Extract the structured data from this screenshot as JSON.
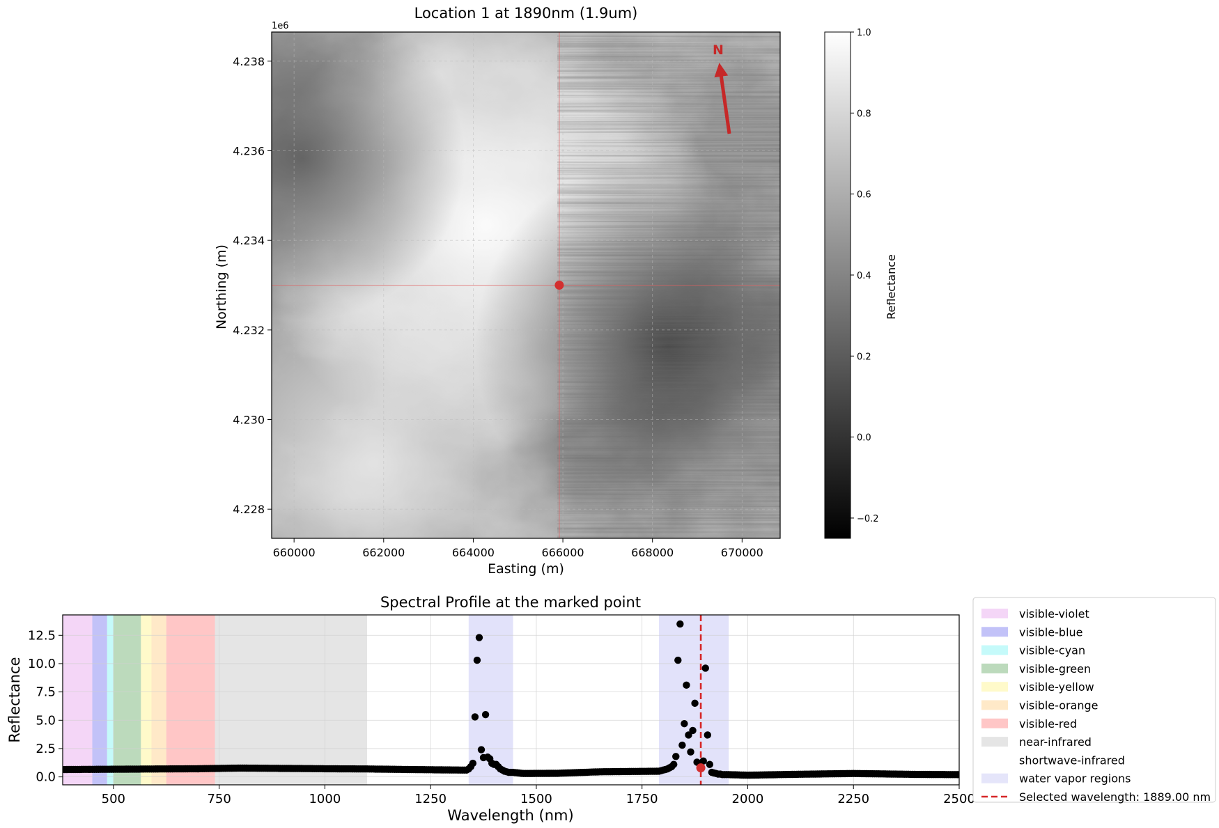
{
  "chart_data": [
    {
      "type": "heatmap",
      "title": "Location 1 at 1890nm (1.9um)",
      "xlabel": "Easting (m)",
      "ylabel": "Northing (m)",
      "xlim": [
        659500,
        670850
      ],
      "ylim": [
        4227350,
        4238650
      ],
      "y_offset_label": "1e6",
      "xticks": [
        660000,
        662000,
        664000,
        666000,
        668000,
        670000
      ],
      "xtick_labels": [
        "660000",
        "662000",
        "664000",
        "666000",
        "668000",
        "670000"
      ],
      "yticks": [
        4228000,
        4230000,
        4232000,
        4234000,
        4236000,
        4238000
      ],
      "ytick_labels": [
        "4.228",
        "4.230",
        "4.232",
        "4.234",
        "4.236",
        "4.238"
      ],
      "grid": true,
      "marked_point": {
        "x": 665920,
        "y": 4233000
      },
      "north_arrow": {
        "label": "N",
        "color": "#c62828"
      },
      "colorbar": {
        "label": "Reflectance",
        "min": -0.25,
        "max": 1.0,
        "ticks": [
          -0.2,
          0.0,
          0.2,
          0.4,
          0.6,
          0.8,
          1.0
        ],
        "tick_labels": [
          "−0.2",
          "0.0",
          "0.2",
          "0.4",
          "0.6",
          "0.8",
          "1.0"
        ],
        "colormap": "gray"
      }
    },
    {
      "type": "scatter",
      "title": "Spectral Profile at the marked point",
      "xlabel": "Wavelength (nm)",
      "ylabel": "Reflectance",
      "xlim": [
        380,
        2500
      ],
      "ylim": [
        -0.7,
        14.3
      ],
      "xticks": [
        500,
        750,
        1000,
        1250,
        1500,
        1750,
        2000,
        2250,
        2500
      ],
      "xtick_labels": [
        "500",
        "750",
        "1000",
        "1250",
        "1500",
        "1750",
        "2000",
        "2250",
        "2500"
      ],
      "yticks": [
        0.0,
        2.5,
        5.0,
        7.5,
        10.0,
        12.5
      ],
      "ytick_labels": [
        "0.0",
        "2.5",
        "5.0",
        "7.5",
        "10.0",
        "12.5"
      ],
      "grid": true,
      "legend_position": "outside right",
      "regions": [
        {
          "name": "visible-violet",
          "start": 380,
          "end": 450,
          "color": "#e6a3ee"
        },
        {
          "name": "visible-blue",
          "start": 450,
          "end": 485,
          "color": "#7777f0"
        },
        {
          "name": "visible-cyan",
          "start": 485,
          "end": 500,
          "color": "#7ff5f5"
        },
        {
          "name": "visible-green",
          "start": 500,
          "end": 565,
          "color": "#6aad6a"
        },
        {
          "name": "visible-yellow",
          "start": 565,
          "end": 590,
          "color": "#fff58a"
        },
        {
          "name": "visible-orange",
          "start": 590,
          "end": 625,
          "color": "#ffcf85"
        },
        {
          "name": "visible-red",
          "start": 625,
          "end": 740,
          "color": "#ff8080"
        },
        {
          "name": "near-infrared",
          "start": 740,
          "end": 1100,
          "color": "#c6c6c6"
        },
        {
          "name": "shortwave-infrared",
          "start": 1100,
          "end": 2500,
          "color": "#ffffff"
        },
        {
          "name": "water vapor regions",
          "ranges": [
            [
              1340,
              1445
            ],
            [
              1790,
              1955
            ]
          ],
          "color": "#c5c5f5"
        }
      ],
      "selected_wavelength": {
        "value": 1889.0,
        "label": "Selected wavelength: 1889.00 nm",
        "color": "#d62728"
      },
      "series": [
        {
          "segments": [
            {
              "start": 380,
              "end": 700,
              "step": 5,
              "values_at": [
                [
                  380,
                  0.65
                ],
                [
                  700,
                  0.72
                ]
              ]
            },
            {
              "start": 700,
              "end": 1330,
              "step": 5,
              "values_at": [
                [
                  700,
                  0.72
                ],
                [
                  800,
                  0.78
                ],
                [
                  900,
                  0.75
                ],
                [
                  1000,
                  0.72
                ],
                [
                  1100,
                  0.7
                ],
                [
                  1200,
                  0.65
                ],
                [
                  1330,
                  0.6
                ]
              ]
            },
            {
              "start": 1445,
              "end": 1790,
              "step": 5,
              "values_at": [
                [
                  1445,
                  0.4
                ],
                [
                  1470,
                  0.3
                ],
                [
                  1550,
                  0.32
                ],
                [
                  1650,
                  0.45
                ],
                [
                  1790,
                  0.5
                ]
              ]
            },
            {
              "start": 1955,
              "end": 2500,
              "step": 5,
              "values_at": [
                [
                  1955,
                  0.2
                ],
                [
                  2000,
                  0.15
                ],
                [
                  2100,
                  0.22
                ],
                [
                  2250,
                  0.3
                ],
                [
                  2400,
                  0.22
                ],
                [
                  2500,
                  0.2
                ]
              ]
            }
          ],
          "points": [
            [
              1335,
              0.6
            ],
            [
              1340,
              0.7
            ],
            [
              1345,
              0.9
            ],
            [
              1350,
              1.2
            ],
            [
              1355,
              5.3
            ],
            [
              1360,
              10.3
            ],
            [
              1365,
              12.3
            ],
            [
              1370,
              2.4
            ],
            [
              1375,
              1.7
            ],
            [
              1380,
              5.5
            ],
            [
              1385,
              1.75
            ],
            [
              1390,
              1.6
            ],
            [
              1395,
              1.2
            ],
            [
              1400,
              1.1
            ],
            [
              1405,
              1.1
            ],
            [
              1410,
              0.9
            ],
            [
              1415,
              0.7
            ],
            [
              1420,
              0.6
            ],
            [
              1425,
              0.5
            ],
            [
              1430,
              0.45
            ],
            [
              1435,
              0.4
            ],
            [
              1440,
              0.4
            ],
            [
              1795,
              0.55
            ],
            [
              1800,
              0.6
            ],
            [
              1805,
              0.65
            ],
            [
              1810,
              0.7
            ],
            [
              1815,
              0.8
            ],
            [
              1820,
              0.9
            ],
            [
              1825,
              1.1
            ],
            [
              1830,
              1.8
            ],
            [
              1835,
              10.3
            ],
            [
              1840,
              13.5
            ],
            [
              1845,
              2.8
            ],
            [
              1850,
              4.7
            ],
            [
              1855,
              8.1
            ],
            [
              1860,
              3.7
            ],
            [
              1865,
              2.2
            ],
            [
              1870,
              4.1
            ],
            [
              1875,
              6.5
            ],
            [
              1880,
              1.3
            ],
            [
              1885,
              1.2
            ],
            [
              1895,
              1.4
            ],
            [
              1900,
              9.6
            ],
            [
              1905,
              3.7
            ],
            [
              1910,
              1.1
            ],
            [
              1915,
              0.4
            ],
            [
              1920,
              0.35
            ],
            [
              1925,
              0.3
            ],
            [
              1930,
              0.25
            ],
            [
              1935,
              0.25
            ],
            [
              1940,
              0.2
            ],
            [
              1945,
              0.2
            ],
            [
              1950,
              0.2
            ]
          ],
          "selected_point": [
            1889,
            0.8
          ]
        }
      ]
    }
  ]
}
